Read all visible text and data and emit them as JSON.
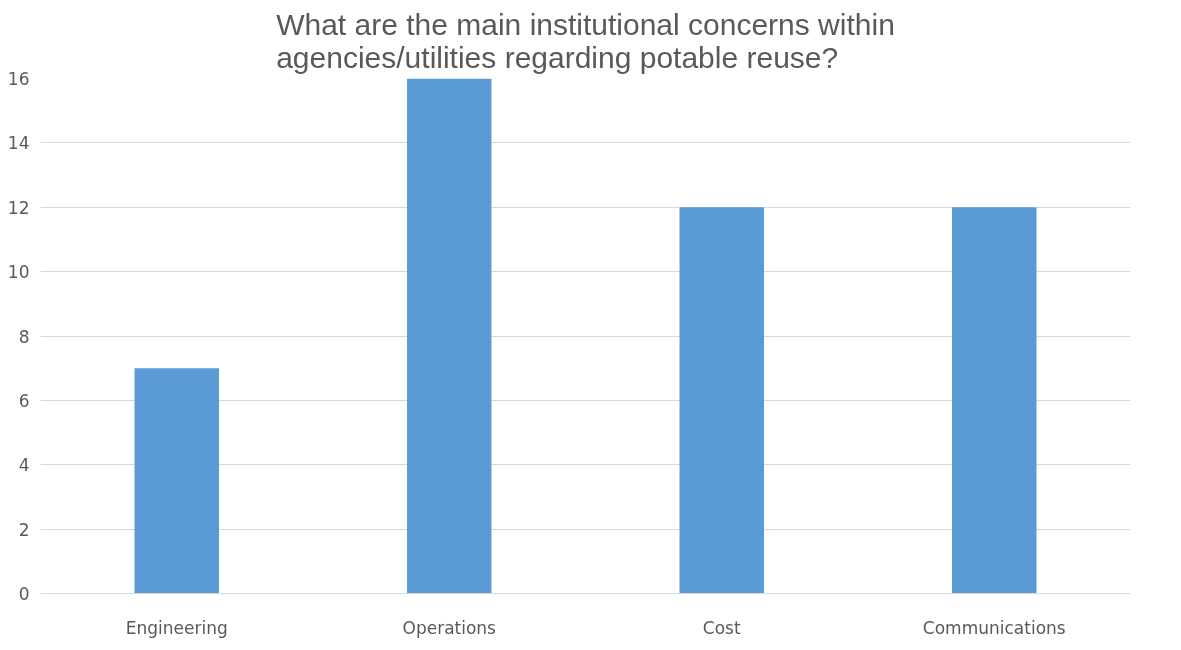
{
  "chart_data": {
    "type": "bar",
    "title": "What are the main institutional concerns within\nagencies/utilities regarding potable reuse?",
    "categories": [
      "Engineering",
      "Operations",
      "Cost",
      "Communications"
    ],
    "values": [
      7,
      16,
      12,
      12
    ],
    "color": "#5b9bd5",
    "ylim": [
      0,
      16
    ],
    "yticks": [
      0,
      2,
      4,
      6,
      8,
      10,
      12,
      14,
      16
    ],
    "grid": "y"
  }
}
